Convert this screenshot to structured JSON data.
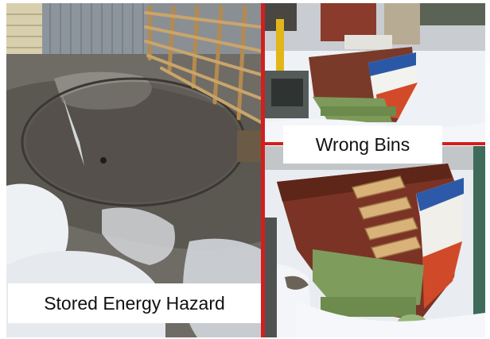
{
  "captions": {
    "left": "Stored Energy Hazard",
    "right": "Wrong Bins"
  },
  "colors": {
    "divider": "#d21f1f",
    "caption_bg": "#ffffff",
    "caption_text": "#111111"
  }
}
